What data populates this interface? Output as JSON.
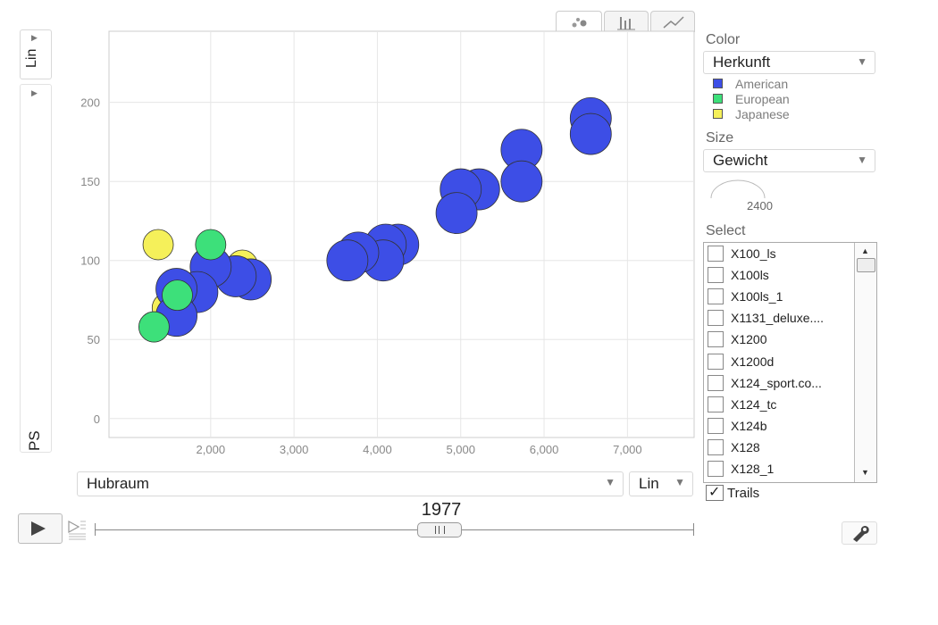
{
  "chart_data": {
    "type": "scatter",
    "xlabel": "Hubraum",
    "ylabel": "PS",
    "x_scale": "Lin",
    "y_scale": "Lin",
    "xlim": [
      780,
      7800
    ],
    "ylim": [
      -12,
      245
    ],
    "x_ticks": [
      2000,
      3000,
      4000,
      5000,
      6000,
      7000
    ],
    "x_tick_labels": [
      "2,000",
      "3,000",
      "4,000",
      "5,000",
      "6,000",
      "7,000"
    ],
    "y_ticks": [
      0,
      50,
      100,
      150,
      200
    ],
    "y_tick_labels": [
      "0",
      "50",
      "100",
      "150",
      "200"
    ],
    "grid": true,
    "year": "1977",
    "series": [
      {
        "name": "American",
        "color": "#3d4ee6",
        "points": [
          {
            "x": 6560,
            "y": 190
          },
          {
            "x": 6560,
            "y": 180
          },
          {
            "x": 5730,
            "y": 170
          },
          {
            "x": 5730,
            "y": 150
          },
          {
            "x": 5220,
            "y": 145
          },
          {
            "x": 5000,
            "y": 145
          },
          {
            "x": 4950,
            "y": 130
          },
          {
            "x": 4250,
            "y": 110
          },
          {
            "x": 4100,
            "y": 110
          },
          {
            "x": 4070,
            "y": 100
          },
          {
            "x": 3770,
            "y": 105
          },
          {
            "x": 3640,
            "y": 100
          },
          {
            "x": 2480,
            "y": 88
          },
          {
            "x": 2300,
            "y": 90
          },
          {
            "x": 2000,
            "y": 96
          },
          {
            "x": 1840,
            "y": 80
          },
          {
            "x": 1590,
            "y": 82
          },
          {
            "x": 1590,
            "y": 65
          }
        ]
      },
      {
        "name": "European",
        "color": "#3de07a",
        "points": [
          {
            "x": 2000,
            "y": 110
          },
          {
            "x": 1600,
            "y": 78
          },
          {
            "x": 1320,
            "y": 58
          }
        ]
      },
      {
        "name": "Japanese",
        "color": "#f5f05a",
        "points": [
          {
            "x": 2380,
            "y": 97
          },
          {
            "x": 1600,
            "y": 68
          },
          {
            "x": 1480,
            "y": 70
          },
          {
            "x": 1370,
            "y": 110
          }
        ]
      }
    ]
  },
  "color_panel": {
    "title": "Color",
    "selected": "Herkunft",
    "legend": [
      {
        "label": "American",
        "color": "#3d4ee6"
      },
      {
        "label": "European",
        "color": "#3de07a"
      },
      {
        "label": "Japanese",
        "color": "#f5f05a"
      }
    ]
  },
  "size_panel": {
    "title": "Size",
    "selected": "Gewicht",
    "value": "2400"
  },
  "select_panel": {
    "title": "Select",
    "items": [
      "X100_ls",
      "X100ls",
      "X100ls_1",
      "X1131_deluxe....",
      "X1200",
      "X1200d",
      "X124_sport.co...",
      "X124_tc",
      "X124b",
      "X128",
      "X128_1"
    ]
  },
  "trails_label": "Trails",
  "x_axis_select": "Hubraum",
  "x_scale_select": "Lin",
  "y_scale_label": "Lin",
  "y_axis_label": "PS",
  "icons": {
    "play": "play-icon",
    "speed": "speed-icon",
    "settings": "wrench-icon"
  }
}
